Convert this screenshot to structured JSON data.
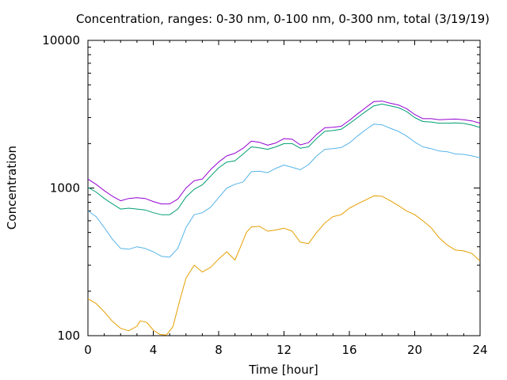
{
  "chart_data": {
    "type": "line",
    "title": "Concentration, ranges: 0-30 nm, 0-100 nm, 0-300 nm, total (3/19/19)",
    "xlabel": "Time [hour]",
    "ylabel": "Concentration",
    "xlim": [
      0,
      24
    ],
    "ylim": [
      100,
      10000
    ],
    "yscale": "log",
    "grid": false,
    "xticks": [
      0,
      4,
      8,
      12,
      16,
      20,
      24
    ],
    "xtick_labels": [
      "0",
      "4",
      "8",
      "12",
      "16",
      "20",
      "24"
    ],
    "yticks": [
      100,
      1000,
      10000
    ],
    "ytick_labels": [
      "100",
      "1000",
      "10000"
    ],
    "series": [
      {
        "color": "#e69f00",
        "x": [
          0,
          0.5,
          1,
          1.5,
          2,
          2.5,
          3,
          3.2,
          3.6,
          4,
          4.4,
          4.8,
          5.2,
          5.6,
          6,
          6.5,
          7,
          7.5,
          8,
          8.5,
          9,
          9.3,
          9.7,
          10,
          10.5,
          11,
          11.5,
          12,
          12.5,
          13,
          13.5,
          14,
          14.5,
          15,
          15.5,
          16,
          16.5,
          17,
          17.5,
          18,
          18.5,
          19,
          19.5,
          20,
          20.5,
          21,
          21.5,
          22,
          22.5,
          23,
          23.5,
          24
        ],
        "y": [
          178,
          165,
          145,
          125,
          112,
          108,
          116,
          126,
          123,
          109,
          102,
          101,
          115,
          170,
          245,
          300,
          270,
          290,
          330,
          370,
          325,
          390,
          500,
          545,
          550,
          510,
          520,
          535,
          510,
          430,
          420,
          500,
          580,
          640,
          660,
          730,
          780,
          830,
          885,
          880,
          820,
          760,
          700,
          660,
          600,
          540,
          460,
          410,
          380,
          375,
          360,
          320
        ]
      },
      {
        "color": "#56b4e9",
        "x": [
          0,
          0.5,
          1,
          1.5,
          2,
          2.5,
          3,
          3.5,
          4,
          4.5,
          5,
          5.5,
          6,
          6.5,
          7,
          7.5,
          8,
          8.5,
          9,
          9.5,
          10,
          10.5,
          11,
          11.5,
          12,
          12.5,
          13,
          13.5,
          14,
          14.5,
          15,
          15.5,
          16,
          16.5,
          17,
          17.5,
          18,
          18.5,
          19,
          19.5,
          20,
          20.5,
          21,
          21.5,
          22,
          22.5,
          23,
          23.5,
          24
        ],
        "y": [
          700,
          640,
          540,
          450,
          390,
          385,
          400,
          390,
          370,
          345,
          340,
          390,
          540,
          660,
          680,
          740,
          860,
          1000,
          1060,
          1100,
          1290,
          1300,
          1270,
          1360,
          1430,
          1380,
          1330,
          1440,
          1650,
          1830,
          1850,
          1880,
          2020,
          2250,
          2480,
          2710,
          2680,
          2540,
          2420,
          2250,
          2050,
          1900,
          1850,
          1780,
          1760,
          1700,
          1690,
          1650,
          1600
        ]
      },
      {
        "color": "#009e73",
        "x": [
          0,
          0.5,
          1,
          1.5,
          2,
          2.5,
          3,
          3.5,
          4,
          4.5,
          5,
          5.5,
          6,
          6.5,
          7,
          7.5,
          8,
          8.5,
          9,
          9.5,
          10,
          10.5,
          11,
          11.5,
          12,
          12.5,
          13,
          13.5,
          14,
          14.5,
          15,
          15.5,
          16,
          16.5,
          17,
          17.5,
          18,
          18.5,
          19,
          19.5,
          20,
          20.5,
          21,
          21.5,
          22,
          22.5,
          23,
          23.5,
          24
        ],
        "y": [
          1010,
          940,
          850,
          780,
          720,
          730,
          720,
          710,
          680,
          660,
          660,
          720,
          870,
          980,
          1050,
          1200,
          1370,
          1500,
          1530,
          1700,
          1900,
          1870,
          1830,
          1900,
          2000,
          2000,
          1860,
          1900,
          2170,
          2420,
          2450,
          2500,
          2730,
          3000,
          3300,
          3600,
          3700,
          3600,
          3500,
          3300,
          3000,
          2820,
          2800,
          2750,
          2750,
          2760,
          2740,
          2670,
          2570
        ]
      },
      {
        "color": "#9400d3",
        "x": [
          0,
          0.5,
          1,
          1.5,
          2,
          2.5,
          3,
          3.5,
          4,
          4.5,
          5,
          5.5,
          6,
          6.5,
          7,
          7.5,
          8,
          8.5,
          9,
          9.5,
          10,
          10.5,
          11,
          11.5,
          12,
          12.5,
          13,
          13.5,
          14,
          14.5,
          15,
          15.5,
          16,
          16.5,
          17,
          17.5,
          18,
          18.5,
          19,
          19.5,
          20,
          20.5,
          21,
          21.5,
          22,
          22.5,
          23,
          23.5,
          24
        ],
        "y": [
          1150,
          1060,
          960,
          880,
          820,
          850,
          860,
          850,
          810,
          780,
          780,
          840,
          1000,
          1120,
          1150,
          1330,
          1500,
          1650,
          1720,
          1860,
          2080,
          2040,
          1950,
          2020,
          2160,
          2140,
          1960,
          2030,
          2310,
          2560,
          2580,
          2620,
          2870,
          3180,
          3500,
          3850,
          3880,
          3750,
          3650,
          3450,
          3150,
          2950,
          2950,
          2900,
          2920,
          2930,
          2900,
          2850,
          2750
        ]
      }
    ]
  }
}
